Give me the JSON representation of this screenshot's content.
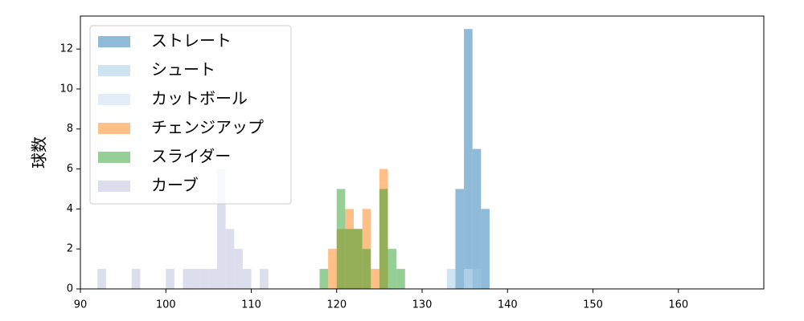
{
  "chart_data": {
    "type": "histogram",
    "y_label": "球数",
    "xlim": [
      90,
      170
    ],
    "ylim": [
      0,
      13.65
    ],
    "xticks": [
      90,
      100,
      110,
      120,
      130,
      140,
      150,
      160
    ],
    "yticks": [
      0,
      2,
      4,
      6,
      8,
      10,
      12
    ],
    "legend": "upper left",
    "series": [
      {
        "name": "ストレート",
        "color": "#1f77b4",
        "bins": [
          133.9,
          134.9,
          135.9,
          136.9,
          137.9
        ],
        "values": [
          5,
          13,
          7,
          4
        ]
      },
      {
        "name": "シュート",
        "color": "#9ecae1",
        "bins": [
          132.9,
          133.9,
          134.9,
          135.9,
          136.9
        ],
        "values": [
          1,
          0,
          1,
          1
        ]
      },
      {
        "name": "カットボール",
        "color": "#c6dbef",
        "bins": [
          134.9,
          135.9
        ],
        "values": [
          1
        ]
      },
      {
        "name": "チェンジアップ",
        "color": "#ff7f0e",
        "bins": [
          119,
          120,
          121,
          122,
          123,
          124,
          125,
          126
        ],
        "values": [
          2,
          3,
          4,
          3,
          4,
          1,
          6
        ]
      },
      {
        "name": "スライダー",
        "color": "#2ca02c",
        "bins": [
          118,
          119,
          120,
          121,
          122,
          123,
          124,
          125,
          126,
          127,
          128
        ],
        "values": [
          1,
          0,
          5,
          3,
          3,
          2,
          0,
          5,
          2,
          1
        ]
      },
      {
        "name": "カーブ",
        "color": "#bcbddc",
        "bins": [
          92,
          93,
          94,
          95,
          96,
          97,
          98,
          99,
          100,
          101,
          102,
          103,
          104,
          105,
          106,
          107,
          108,
          109,
          110,
          111,
          112
        ],
        "values": [
          1,
          0,
          0,
          0,
          1,
          0,
          0,
          0,
          1,
          0,
          1,
          1,
          1,
          1,
          6,
          3,
          2,
          1,
          0,
          1
        ]
      }
    ]
  }
}
